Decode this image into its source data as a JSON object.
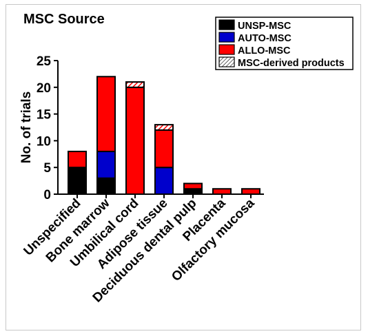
{
  "chart_data": {
    "type": "bar",
    "stacked": true,
    "title": "MSC Source",
    "xlabel": "",
    "ylabel": "No. of trials",
    "ylim": [
      0,
      25
    ],
    "yticks": [
      0,
      5,
      10,
      15,
      20,
      25
    ],
    "grid": false,
    "legend_position": "top-right",
    "categories": [
      "Unspecified",
      "Bone marrow",
      "Umbilical cord",
      "Adipose tissue",
      "Deciduous dental pulp",
      "Placenta",
      "Olfactory mucosa"
    ],
    "series": [
      {
        "name": "UNSP-MSC",
        "color": "#000000",
        "pattern": "solid",
        "values": [
          5,
          3,
          0,
          0,
          1,
          0,
          0
        ]
      },
      {
        "name": "AUTO-MSC",
        "color": "#0000cc",
        "pattern": "solid",
        "values": [
          0,
          5,
          0,
          5,
          0,
          0,
          0
        ]
      },
      {
        "name": "ALLO-MSC",
        "color": "#ff0000",
        "pattern": "solid",
        "values": [
          3,
          14,
          20,
          7,
          1,
          1,
          1
        ]
      },
      {
        "name": "MSC-derived products",
        "color": "#ff0000",
        "pattern": "hatch",
        "values": [
          0,
          0,
          1,
          1,
          0,
          0,
          0
        ]
      }
    ]
  }
}
